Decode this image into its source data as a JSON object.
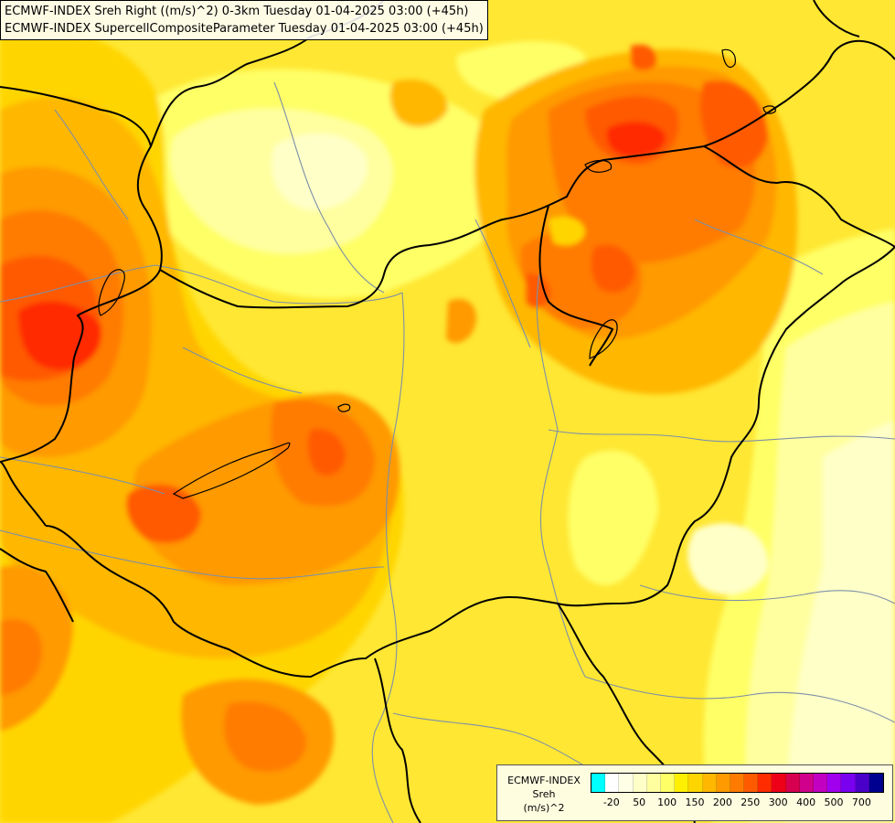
{
  "title": {
    "line1": "ECMWF-INDEX Sreh Right ((m/s)^2) 0-3km Tuesday 01-04-2025 03:00 (+45h)",
    "line2": "ECMWF-INDEX SupercellCompositeParameter Tuesday 01-04-2025 03:00 (+45h)"
  },
  "legend": {
    "line1": "ECMWF-INDEX",
    "line2": "Sreh",
    "line3": "(m/s)^2",
    "swatch_colors": [
      "#00ffff",
      "#ffffff",
      "#ffffe6",
      "#ffffc8",
      "#ffffa0",
      "#ffff66",
      "#ffef00",
      "#ffd500",
      "#ffb700",
      "#ff9a00",
      "#ff7b00",
      "#ff5a00",
      "#ff2c00",
      "#ee0019",
      "#d70050",
      "#d1008c",
      "#c200c2",
      "#a000ee",
      "#7a00f0",
      "#4a00c8",
      "#000090"
    ],
    "ticks": [
      "-20",
      "50",
      "100",
      "150",
      "200",
      "250",
      "300",
      "400",
      "500",
      "700"
    ]
  },
  "map_colors": {
    "base": "#ffe733",
    "pale": "#ffffa0",
    "light": "#ffff66",
    "amber": "#ffd500",
    "orange": "#ffb700",
    "deep_orange": "#ff9a00",
    "red_orange": "#ff7b00",
    "red": "#ff5a00",
    "crimson": "#ff2c00",
    "border": "#000000",
    "river": "#7d8fa8"
  }
}
